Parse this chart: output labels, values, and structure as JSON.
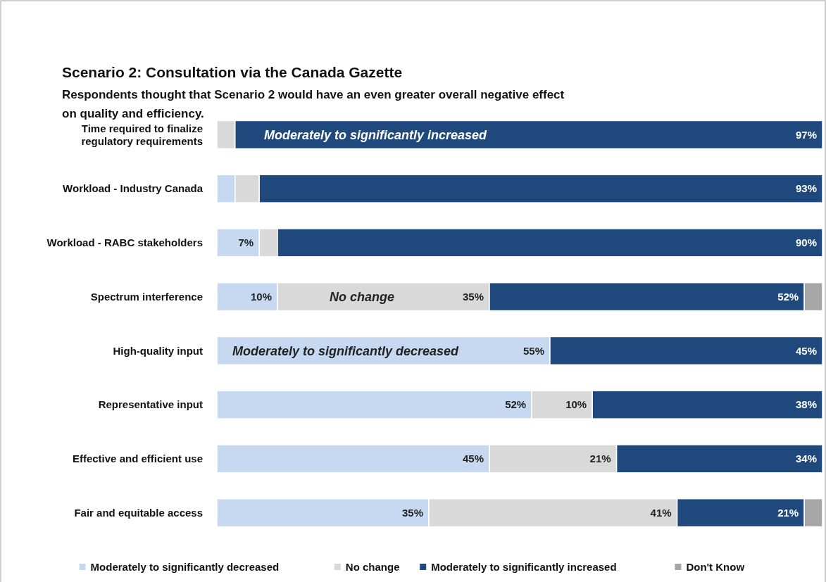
{
  "chart_data": {
    "type": "bar",
    "orientation": "horizontal",
    "stacked": true,
    "title": "Scenario 2: Consultation via the Canada Gazette",
    "subtitle": "Respondents thought that Scenario 2 would have an even greater overall negative effect on quality and efficiency.",
    "categories": [
      "Time required to finalize regulatory requirements",
      "Workload - Industry Canada",
      "Workload - RABC stakeholders",
      "Spectrum interference",
      "High-quality input",
      "Representative input",
      "Effective and efficient use",
      "Fair and equitable access"
    ],
    "series": [
      {
        "name": "Moderately to significantly decreased",
        "color": "#c6d9f1",
        "values": [
          0,
          3,
          7,
          10,
          55,
          52,
          45,
          35
        ],
        "value_labels": [
          null,
          null,
          "7%",
          "10%",
          "55%",
          "52%",
          "45%",
          "35%"
        ]
      },
      {
        "name": "No change",
        "color": "#d9d9d9",
        "values": [
          3,
          4,
          3,
          35,
          0,
          10,
          21,
          41
        ],
        "value_labels": [
          null,
          null,
          null,
          "35%",
          null,
          "10%",
          "21%",
          "41%"
        ]
      },
      {
        "name": "Moderately to significantly increased",
        "color": "#1f497d",
        "values": [
          97,
          93,
          90,
          52,
          45,
          38,
          34,
          21
        ],
        "value_labels": [
          "97%",
          "93%",
          "90%",
          "52%",
          "45%",
          "38%",
          "34%",
          "21%"
        ]
      },
      {
        "name": "Don't Know",
        "color": "#a6a6a6",
        "values": [
          0,
          0,
          0,
          3,
          0,
          0,
          0,
          3
        ],
        "value_labels": [
          null,
          null,
          null,
          null,
          null,
          null,
          null,
          null
        ]
      }
    ],
    "annotations": [
      "Moderately to significantly increased",
      "No change",
      "Moderately to significantly decreased"
    ],
    "legend": "bottom",
    "grid": false
  }
}
